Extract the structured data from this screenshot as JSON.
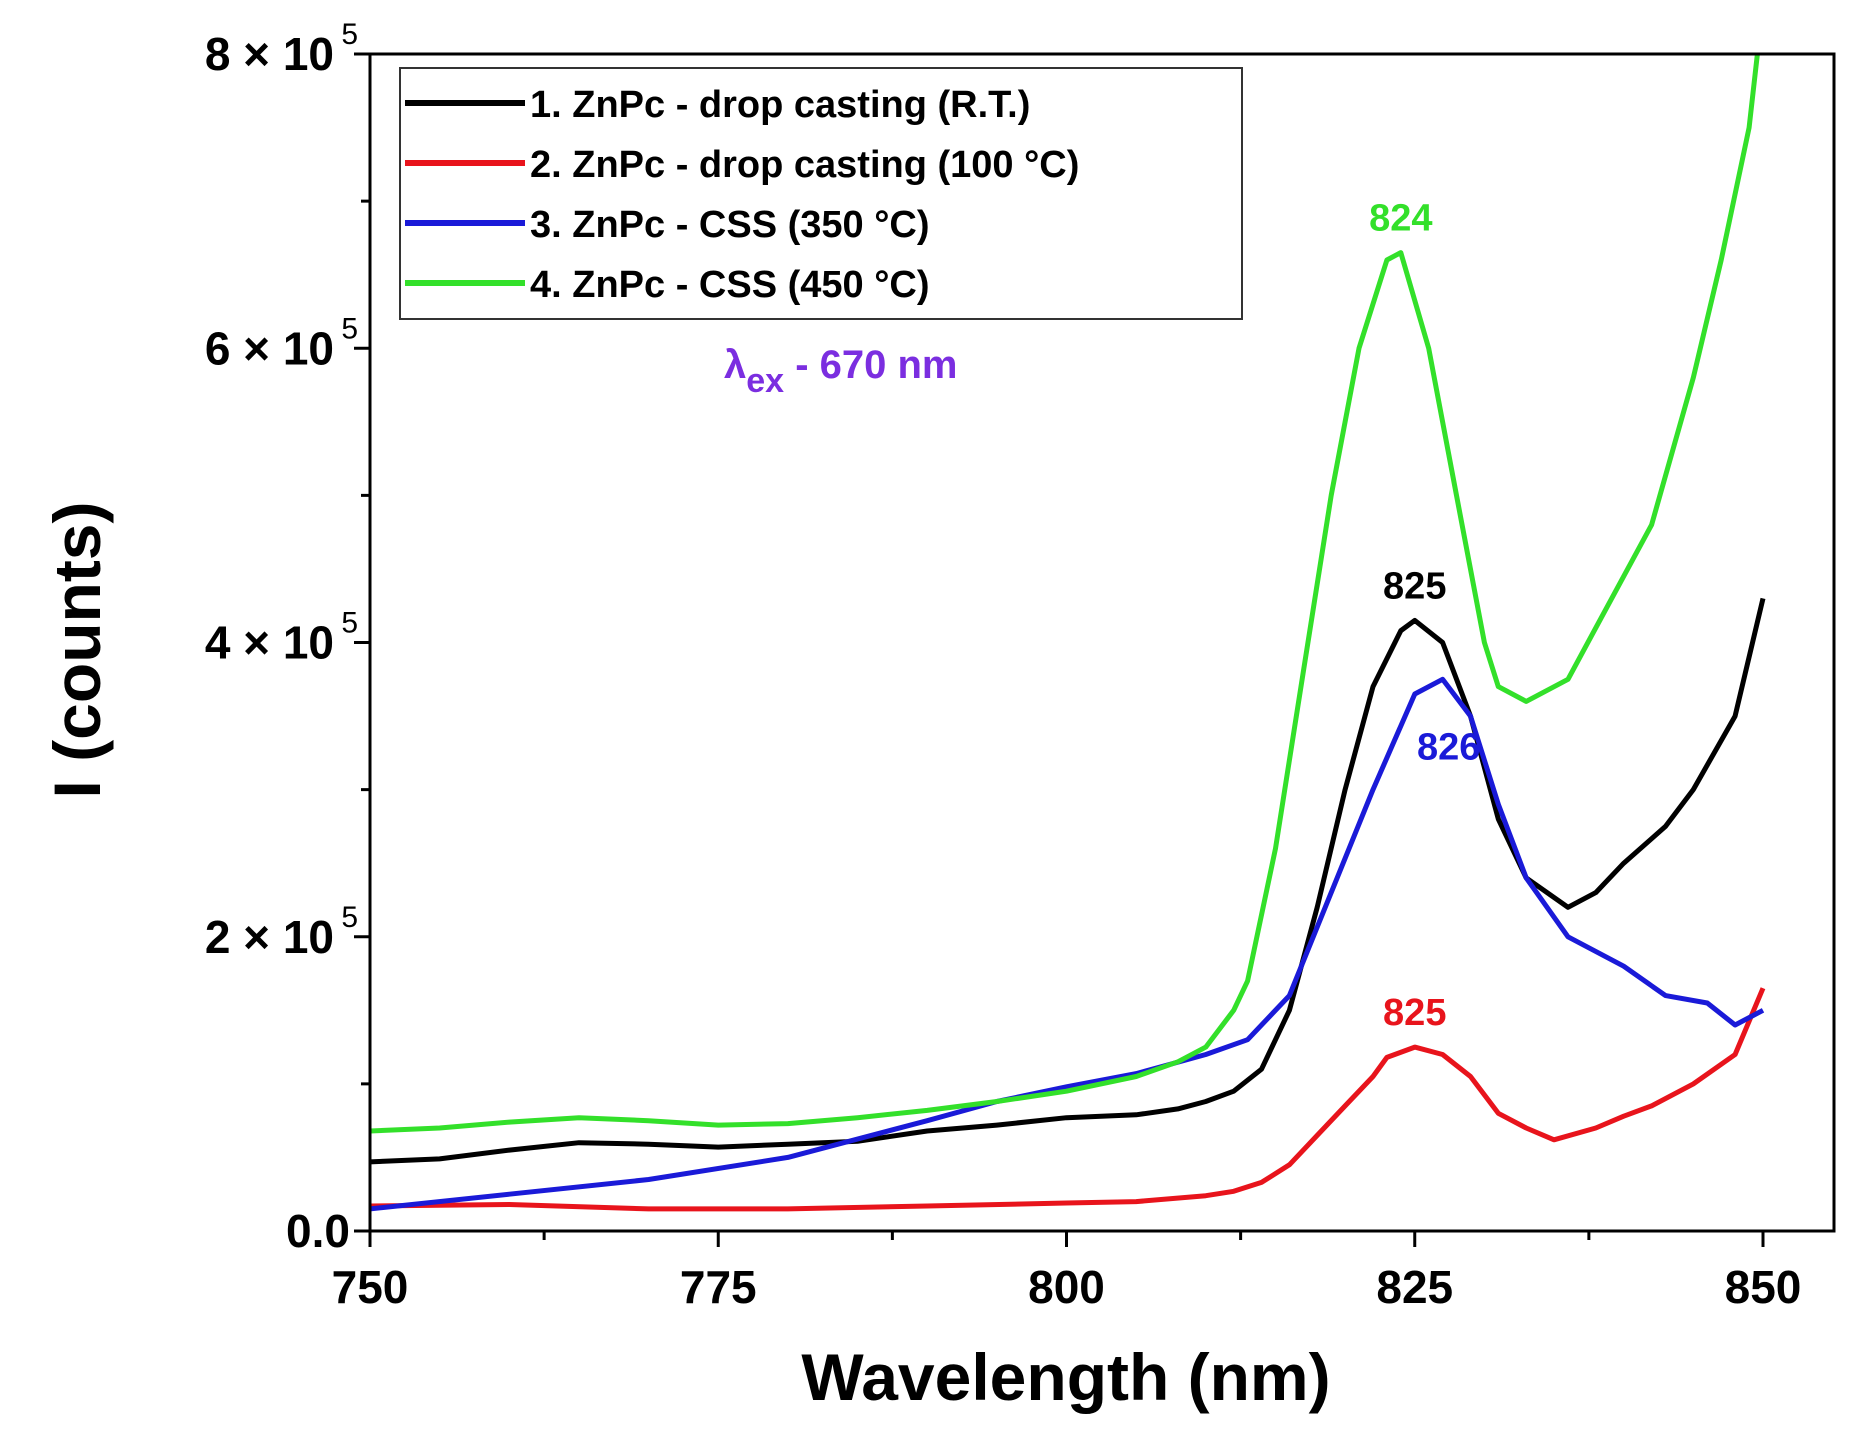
{
  "chart_data": {
    "type": "line",
    "title": "",
    "xlabel": "Wavelength (nm)",
    "ylabel": "I (counts)",
    "xlim": [
      750,
      855
    ],
    "ylim": [
      0,
      800000
    ],
    "xticks": [
      750,
      775,
      800,
      825,
      850
    ],
    "xtick_labels": [
      "750",
      "775",
      "800",
      "825",
      "850"
    ],
    "yticks": [
      0,
      200000,
      400000,
      600000,
      800000
    ],
    "ytick_labels": [
      {
        "base": "0.0",
        "exp": ""
      },
      {
        "base": "2 × 10",
        "exp": "5"
      },
      {
        "base": "4 × 10",
        "exp": "5"
      },
      {
        "base": "6 × 10",
        "exp": "5"
      },
      {
        "base": "8 × 10",
        "exp": "5"
      }
    ],
    "grid": false,
    "legend_placement": "top-left",
    "annotation": {
      "main": "λ",
      "sub": "ex",
      "rest": " - 670 nm",
      "color": "#7b2ee0"
    },
    "series": [
      {
        "name": "1. ZnPc - drop casting (R.T.)",
        "color": "#000000",
        "peak_label": "825",
        "peak": [
          825,
          415000
        ],
        "x": [
          750,
          755,
          760,
          765,
          770,
          775,
          780,
          785,
          790,
          795,
          800,
          805,
          808,
          810,
          812,
          814,
          816,
          818,
          820,
          822,
          824,
          825,
          827,
          829,
          831,
          833,
          836,
          838,
          840,
          843,
          845,
          848,
          850
        ],
        "y": [
          47000,
          49000,
          55000,
          60000,
          59000,
          57000,
          59000,
          61000,
          68000,
          72000,
          77000,
          79000,
          83000,
          88000,
          95000,
          110000,
          150000,
          220000,
          300000,
          370000,
          408000,
          415000,
          400000,
          350000,
          280000,
          240000,
          220000,
          230000,
          250000,
          275000,
          300000,
          350000,
          430000
        ]
      },
      {
        "name": "2. ZnPc - drop casting (100 °C)",
        "color": "#e8141c",
        "peak_label": "825",
        "peak": [
          825,
          125000
        ],
        "x": [
          750,
          760,
          770,
          780,
          790,
          800,
          805,
          810,
          812,
          814,
          816,
          818,
          820,
          822,
          823,
          825,
          827,
          829,
          831,
          833,
          835,
          838,
          840,
          842,
          845,
          848,
          850
        ],
        "y": [
          17000,
          18000,
          15000,
          15000,
          17000,
          19000,
          20000,
          24000,
          27000,
          33000,
          45000,
          65000,
          85000,
          105000,
          118000,
          125000,
          120000,
          105000,
          80000,
          70000,
          62000,
          70000,
          78000,
          85000,
          100000,
          120000,
          165000
        ]
      },
      {
        "name": "3. ZnPc - CSS (350 °C)",
        "color": "#1a1ad8",
        "peak_label": "826",
        "peak": [
          826,
          375000
        ],
        "x": [
          750,
          760,
          770,
          780,
          790,
          795,
          800,
          805,
          810,
          813,
          816,
          819,
          822,
          825,
          827,
          829,
          831,
          833,
          836,
          840,
          843,
          846,
          848,
          850
        ],
        "y": [
          15000,
          25000,
          35000,
          50000,
          75000,
          88000,
          98000,
          107000,
          120000,
          130000,
          160000,
          230000,
          300000,
          365000,
          375000,
          350000,
          290000,
          240000,
          200000,
          180000,
          160000,
          155000,
          140000,
          150000
        ]
      },
      {
        "name": "4. ZnPc - CSS (450 °C)",
        "color": "#33e02a",
        "peak_label": "824",
        "peak": [
          824,
          665000
        ],
        "x": [
          750,
          755,
          760,
          765,
          770,
          775,
          780,
          785,
          790,
          795,
          800,
          805,
          808,
          810,
          812,
          813,
          815,
          817,
          819,
          821,
          823,
          824,
          826,
          828,
          830,
          831,
          833,
          836,
          838,
          842,
          845,
          847,
          849,
          849.6
        ],
        "y": [
          68000,
          70000,
          74000,
          77000,
          75000,
          72000,
          73000,
          77000,
          82000,
          88000,
          95000,
          105000,
          115000,
          125000,
          150000,
          170000,
          260000,
          380000,
          500000,
          600000,
          660000,
          665000,
          600000,
          500000,
          400000,
          370000,
          360000,
          375000,
          410000,
          480000,
          580000,
          660000,
          750000,
          800000
        ]
      }
    ]
  }
}
